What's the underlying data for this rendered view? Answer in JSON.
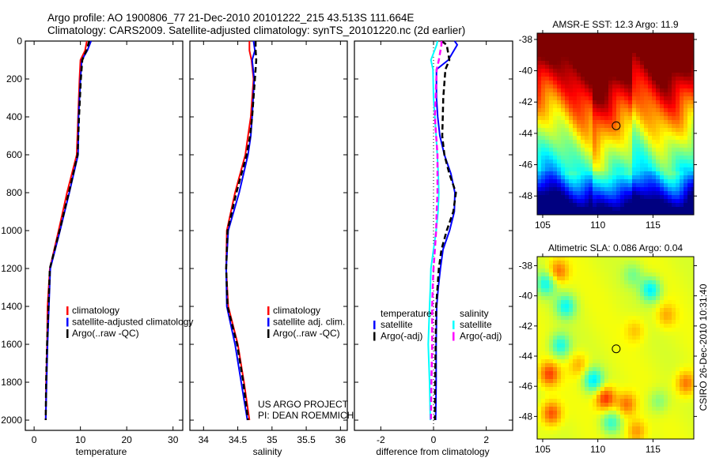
{
  "title": {
    "line1": "Argo profile: AO 1900806_77 21-Dec-2010 20101222_215 43.513S 111.664E",
    "line2": "Climatology: CARS2009. Satellite-adjusted climatology: synTS_20101220.nc (2d earlier)"
  },
  "credit": {
    "line1": "US ARGO PROJECT",
    "line2": "PI: DEAN ROEMMICH"
  },
  "stamp": "CSIRO 26-Dec-2010 10:31:40",
  "colors": {
    "climatology": "#ff0000",
    "satellite": "#0000ff",
    "argo": "#000000",
    "sal_satellite": "#00ffff",
    "sal_argo": "#ff00ff"
  },
  "chart_data": [
    {
      "type": "line",
      "xlabel": "temperature",
      "ylabel": "depth",
      "xlim": [
        -1.9,
        32.1
      ],
      "ylim": [
        0,
        2054
      ],
      "y_reversed": true,
      "xticks": [
        0,
        10,
        20,
        30
      ],
      "yticks": [
        0,
        200,
        400,
        600,
        800,
        1000,
        1200,
        1400,
        1600,
        1800,
        2000
      ],
      "legend": [
        "climatology",
        "satellite-adjusted climatology",
        "Argo(..raw -QC)"
      ],
      "depth": [
        0,
        50,
        100,
        200,
        400,
        600,
        800,
        1000,
        1200,
        1400,
        1600,
        1800,
        2000
      ],
      "series": [
        {
          "name": "climatology",
          "color": "#ff0000",
          "values": [
            11.4,
            11.0,
            10.0,
            9.8,
            9.5,
            9.2,
            7.1,
            5.3,
            3.4,
            2.9,
            2.8,
            2.6,
            2.5
          ]
        },
        {
          "name": "satellite-adjusted climatology",
          "color": "#0000ff",
          "values": [
            12.3,
            11.5,
            10.3,
            10.0,
            9.6,
            9.5,
            7.6,
            5.6,
            3.5,
            3.2,
            2.9,
            2.7,
            2.5
          ]
        },
        {
          "name": "Argo(..raw -QC)",
          "color": "#000000",
          "dashed": true,
          "values": [
            11.9,
            11.3,
            10.4,
            10.1,
            9.7,
            9.4,
            7.5,
            5.5,
            3.4,
            3.1,
            2.8,
            2.6,
            2.5
          ]
        }
      ]
    },
    {
      "type": "line",
      "xlabel": "salinity",
      "ylabel": "depth",
      "xlim": [
        33.8,
        36.1
      ],
      "ylim": [
        0,
        2054
      ],
      "y_reversed": true,
      "xticks": [
        34,
        34.5,
        35,
        35.5,
        36
      ],
      "legend": [
        "climatology",
        "satellite adj. clim.",
        "Argo(..raw -QC)"
      ],
      "depth": [
        0,
        50,
        100,
        200,
        400,
        500,
        600,
        800,
        1000,
        1200,
        1400,
        1600,
        1800,
        2000
      ],
      "series": [
        {
          "name": "climatology",
          "color": "#ff0000",
          "values": [
            34.67,
            34.67,
            34.7,
            34.73,
            34.69,
            34.65,
            34.61,
            34.46,
            34.34,
            34.33,
            34.36,
            34.5,
            34.59,
            34.67
          ]
        },
        {
          "name": "satellite adj. clim.",
          "color": "#0000ff",
          "values": [
            34.73,
            34.75,
            34.71,
            34.74,
            34.71,
            34.69,
            34.65,
            34.52,
            34.36,
            34.33,
            34.34,
            34.46,
            34.55,
            34.64
          ]
        },
        {
          "name": "Argo(..raw -QC)",
          "color": "#000000",
          "dashed": true,
          "values": [
            34.76,
            34.76,
            34.77,
            34.75,
            34.71,
            34.68,
            34.63,
            34.48,
            34.35,
            34.33,
            34.35,
            34.49,
            34.58,
            34.65
          ]
        }
      ]
    },
    {
      "type": "line",
      "xlabel": "difference from climatology",
      "ylabel": "depth",
      "xlim": [
        -3,
        3
      ],
      "ylim": [
        0,
        2054
      ],
      "y_reversed": true,
      "xticks": [
        -2,
        0,
        2
      ],
      "legend_groups": [
        {
          "title": "temperature",
          "items": [
            "satellite",
            "Argo(-adj)"
          ]
        },
        {
          "title": "salinity",
          "items": [
            "satellite",
            "Argo(-adj)"
          ]
        }
      ],
      "depth": [
        0,
        20,
        100,
        150,
        300,
        400,
        500,
        600,
        700,
        800,
        900,
        1000,
        1100,
        1200,
        1300,
        1400,
        1600,
        1800,
        2000
      ],
      "series": [
        {
          "name": "temperature satellite",
          "color": "#0000ff",
          "values": [
            0.8,
            0.9,
            0.56,
            0.11,
            0.11,
            0.16,
            0.24,
            0.41,
            0.66,
            0.81,
            0.79,
            0.61,
            0.36,
            0.26,
            0.18,
            0.12,
            0.1,
            0.1,
            0.08
          ]
        },
        {
          "name": "temperature Argo(-adj)",
          "color": "#000000",
          "dashed": true,
          "values": [
            0.3,
            0.5,
            0.6,
            0.45,
            0.37,
            0.35,
            0.33,
            0.41,
            0.6,
            0.85,
            0.75,
            0.5,
            0.3,
            0.2,
            0.15,
            0.1,
            0.08,
            0.06,
            0.05
          ]
        },
        {
          "name": "salinity satellite",
          "color": "#00ffff",
          "values": [
            0.15,
            0.12,
            -0.1,
            -0.02,
            0.0,
            0.05,
            0.1,
            0.14,
            0.18,
            0.2,
            0.17,
            0.1,
            0.0,
            -0.1,
            -0.12,
            -0.15,
            -0.2,
            -0.15,
            -0.12
          ]
        },
        {
          "name": "salinity Argo(-adj)",
          "color": "#ff00ff",
          "dashed": true,
          "values": [
            0.3,
            0.3,
            0.2,
            0.12,
            0.08,
            0.05,
            0.1,
            0.15,
            0.15,
            0.15,
            0.12,
            0.1,
            0.05,
            0.0,
            -0.03,
            -0.05,
            -0.05,
            -0.08,
            -0.1
          ]
        }
      ]
    },
    {
      "type": "heatmap",
      "title": "AMSR-E SST: 12.3 Argo: 11.9",
      "xlim": [
        104.5,
        118.7
      ],
      "ylim": [
        -49.2,
        -37.6
      ],
      "xticks": [
        105,
        110,
        115
      ],
      "yticks": [
        -38,
        -40,
        -42,
        -44,
        -46,
        -48
      ],
      "float_position": {
        "lon": 111.664,
        "lat": -43.513
      },
      "color_range": [
        5,
        18
      ]
    },
    {
      "type": "heatmap",
      "title": "Altimetric SLA: 0.086 Argo: 0.04",
      "xlim": [
        104.5,
        118.7
      ],
      "ylim": [
        -49.5,
        -37.4
      ],
      "xticks": [
        105,
        110,
        115
      ],
      "yticks": [
        -38,
        -40,
        -42,
        -44,
        -46,
        -48
      ],
      "float_position": {
        "lon": 111.664,
        "lat": -43.513
      },
      "color_range": [
        -0.4,
        0.4
      ],
      "anomalies": [
        {
          "lon": 105.3,
          "lat": -39.2,
          "value": -0.3
        },
        {
          "lon": 107.1,
          "lat": -40.7,
          "value": -0.3
        },
        {
          "lon": 106.6,
          "lat": -43.3,
          "value": -0.3
        },
        {
          "lon": 109.6,
          "lat": -45.6,
          "value": -0.35
        },
        {
          "lon": 111.2,
          "lat": -48.4,
          "value": -0.25
        },
        {
          "lon": 114.8,
          "lat": -39.6,
          "value": -0.35
        },
        {
          "lon": 113.2,
          "lat": -38.6,
          "value": -0.15
        },
        {
          "lon": 115.5,
          "lat": -47.0,
          "value": -0.15
        },
        {
          "lon": 106.4,
          "lat": -38.4,
          "value": 0.25
        },
        {
          "lon": 105.6,
          "lat": -45.2,
          "value": 0.3
        },
        {
          "lon": 105.8,
          "lat": -47.8,
          "value": 0.3
        },
        {
          "lon": 110.7,
          "lat": -46.8,
          "value": 0.35
        },
        {
          "lon": 112.6,
          "lat": -47.2,
          "value": 0.25
        },
        {
          "lon": 118.0,
          "lat": -45.8,
          "value": 0.25
        },
        {
          "lon": 116.2,
          "lat": -41.3,
          "value": 0.15
        },
        {
          "lon": 108.3,
          "lat": -44.6,
          "value": 0.15
        },
        {
          "lon": 113.4,
          "lat": -42.3,
          "value": 0.12
        },
        {
          "lon": 113.5,
          "lat": -49.0,
          "value": 0.2
        }
      ]
    }
  ]
}
